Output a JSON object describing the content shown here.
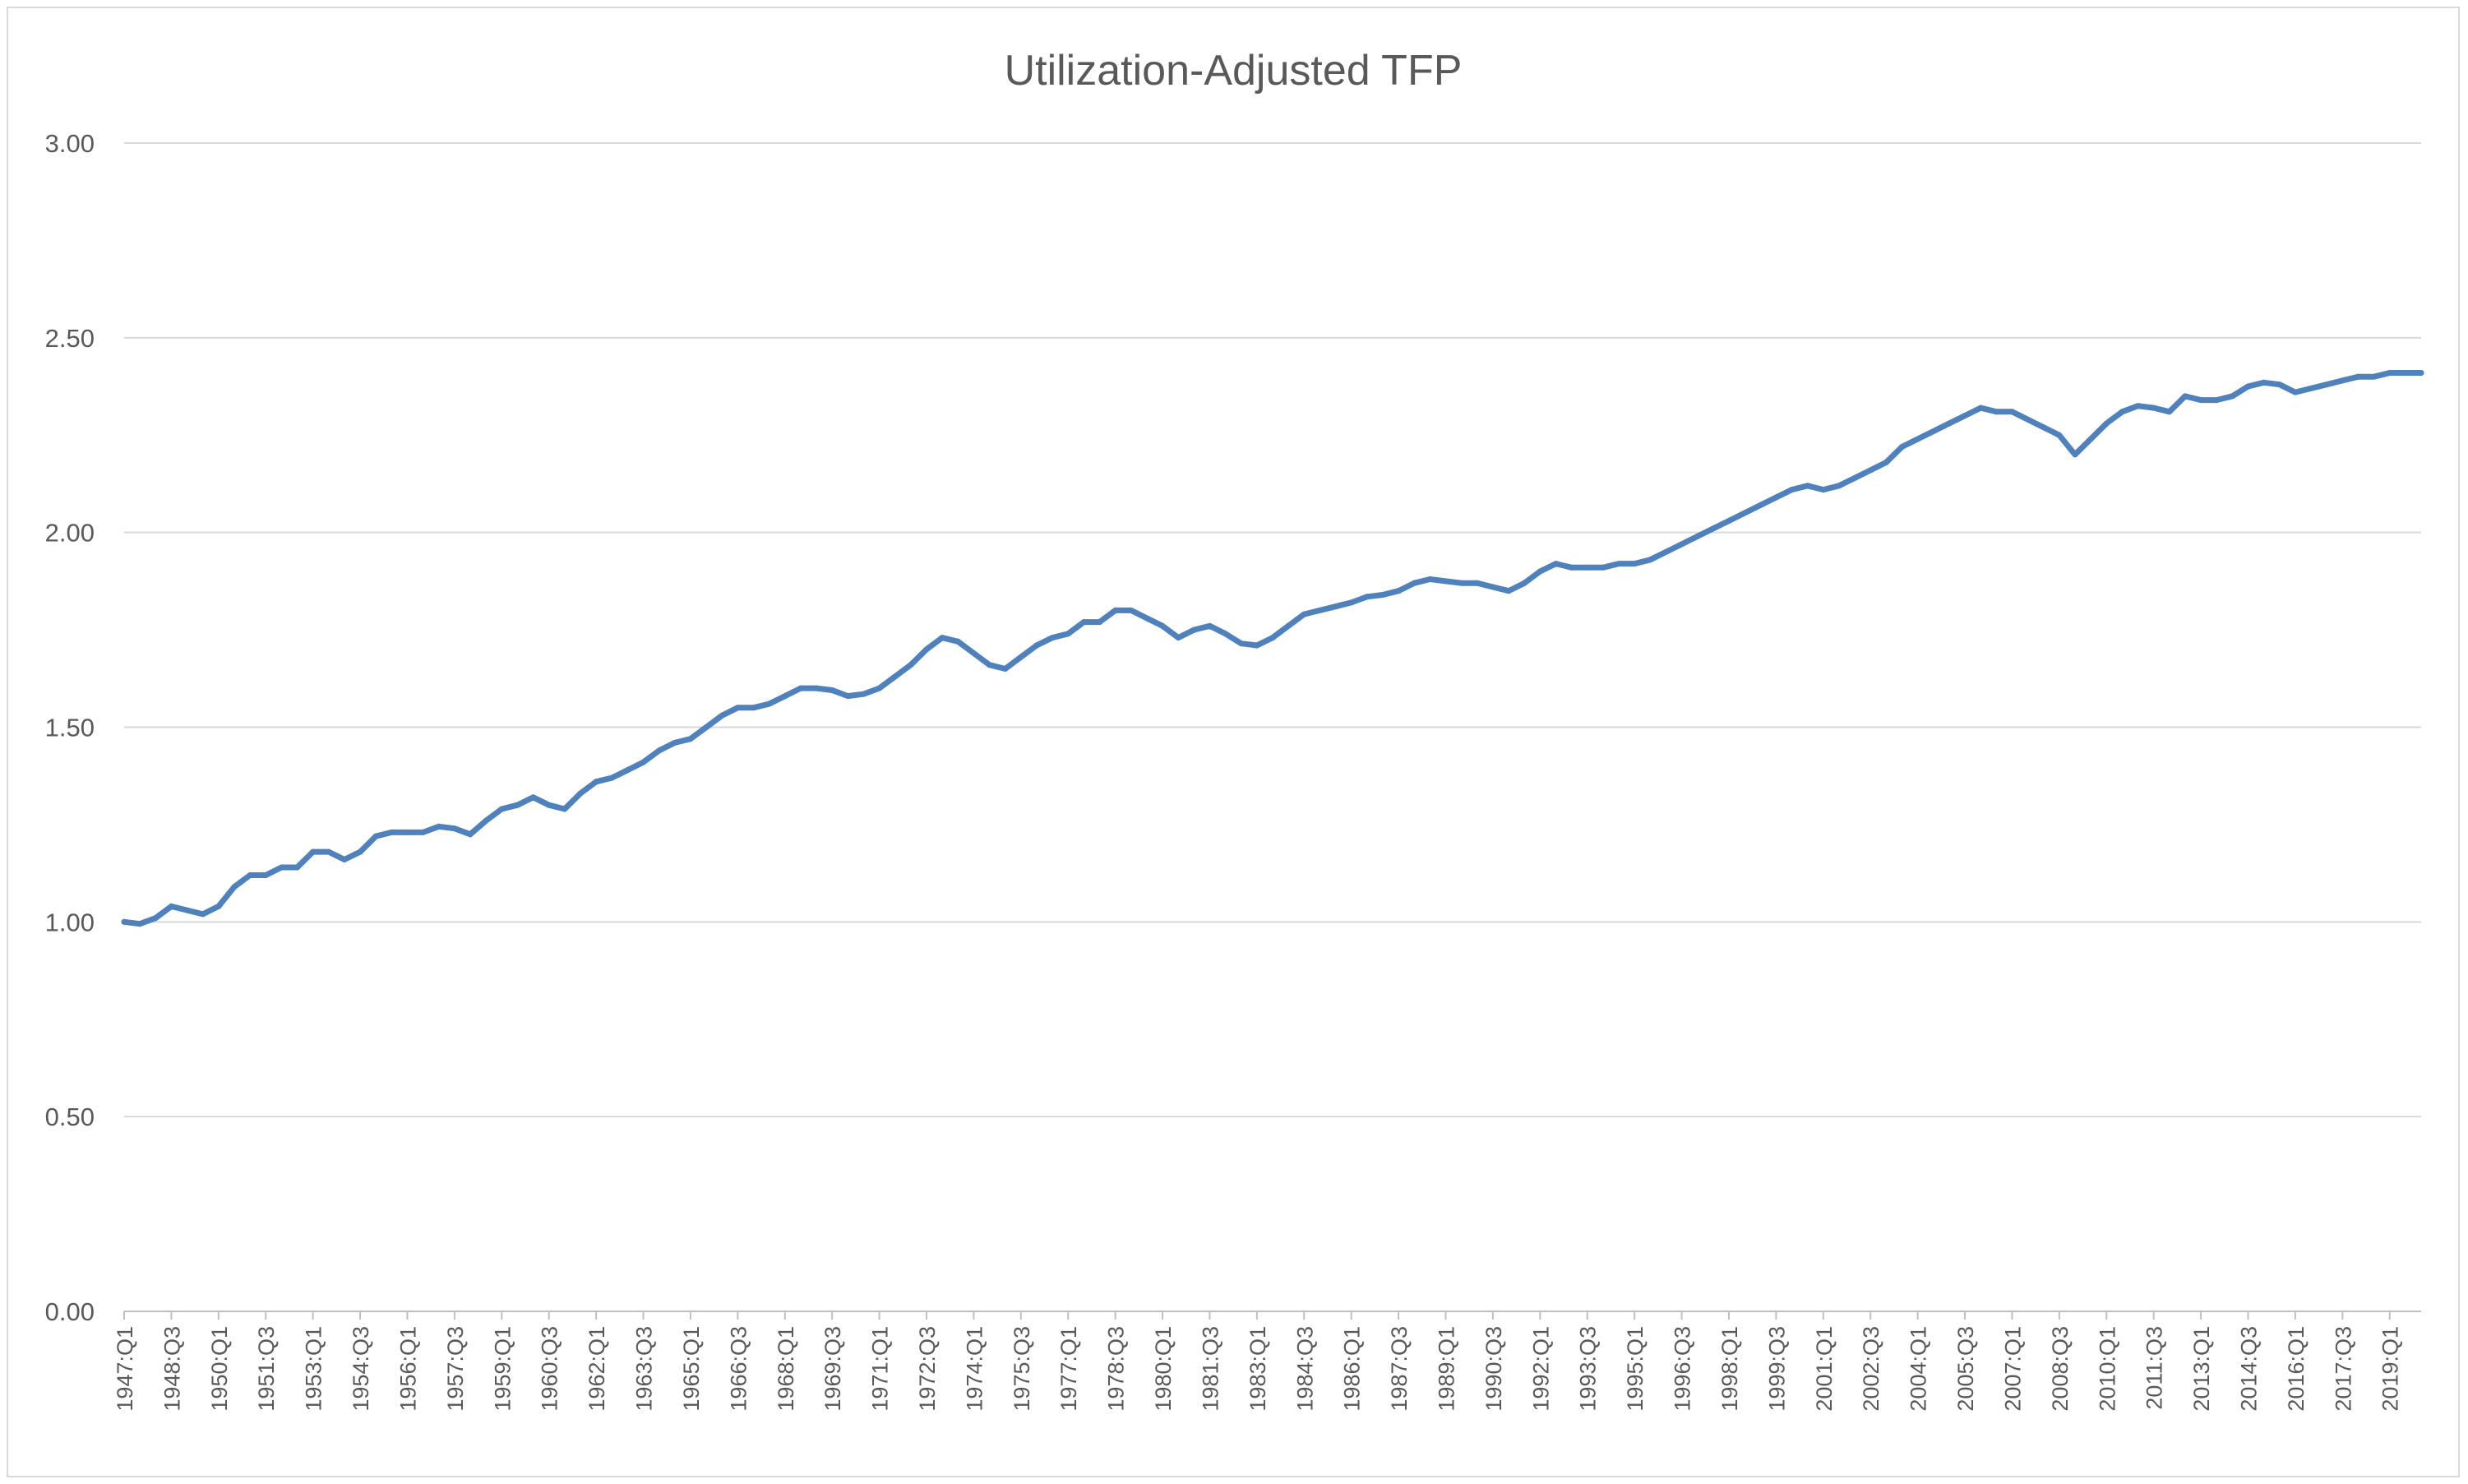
{
  "chart_data": {
    "type": "line",
    "title": "Utilization-Adjusted TFP",
    "xlabel": "",
    "ylabel": "",
    "ylim": [
      0,
      3
    ],
    "y_ticks": [
      "0.00",
      "0.50",
      "1.00",
      "1.50",
      "2.00",
      "2.50",
      "3.00"
    ],
    "grid": true,
    "legend": "none",
    "x_tick_labels": [
      "1947:Q1",
      "1948:Q3",
      "1950:Q1",
      "1951:Q3",
      "1953:Q1",
      "1954:Q3",
      "1956:Q1",
      "1957:Q3",
      "1959:Q1",
      "1960:Q3",
      "1962:Q1",
      "1963:Q3",
      "1965:Q1",
      "1966:Q3",
      "1968:Q1",
      "1969:Q3",
      "1971:Q1",
      "1972:Q3",
      "1974:Q1",
      "1975:Q3",
      "1977:Q1",
      "1978:Q3",
      "1980:Q1",
      "1981:Q3",
      "1983:Q1",
      "1984:Q3",
      "1986:Q1",
      "1987:Q3",
      "1989:Q1",
      "1990:Q3",
      "1992:Q1",
      "1993:Q3",
      "1995:Q1",
      "1996:Q3",
      "1998:Q1",
      "1999:Q3",
      "2001:Q1",
      "2002:Q3",
      "2004:Q1",
      "2005:Q3",
      "2007:Q1",
      "2008:Q3",
      "2010:Q1",
      "2011:Q3",
      "2013:Q1",
      "2014:Q3",
      "2016:Q1",
      "2017:Q3",
      "2019:Q1"
    ],
    "first_quarter": "1947:Q1",
    "last_quarter": "2020:Q1",
    "series": [
      {
        "color": "#4f81bd",
        "points": [
          [
            "1947:Q1",
            1.0
          ],
          [
            "1947:Q3",
            0.995
          ],
          [
            "1948:Q1",
            1.01
          ],
          [
            "1948:Q3",
            1.04
          ],
          [
            "1949:Q1",
            1.03
          ],
          [
            "1949:Q3",
            1.02
          ],
          [
            "1950:Q1",
            1.04
          ],
          [
            "1950:Q3",
            1.09
          ],
          [
            "1951:Q1",
            1.12
          ],
          [
            "1951:Q3",
            1.12
          ],
          [
            "1952:Q1",
            1.14
          ],
          [
            "1952:Q3",
            1.14
          ],
          [
            "1953:Q1",
            1.18
          ],
          [
            "1953:Q3",
            1.18
          ],
          [
            "1954:Q1",
            1.16
          ],
          [
            "1954:Q3",
            1.18
          ],
          [
            "1955:Q1",
            1.22
          ],
          [
            "1955:Q3",
            1.23
          ],
          [
            "1956:Q1",
            1.23
          ],
          [
            "1956:Q3",
            1.23
          ],
          [
            "1957:Q1",
            1.245
          ],
          [
            "1957:Q3",
            1.24
          ],
          [
            "1958:Q1",
            1.225
          ],
          [
            "1958:Q3",
            1.26
          ],
          [
            "1959:Q1",
            1.29
          ],
          [
            "1959:Q3",
            1.3
          ],
          [
            "1960:Q1",
            1.32
          ],
          [
            "1960:Q3",
            1.3
          ],
          [
            "1961:Q1",
            1.29
          ],
          [
            "1961:Q3",
            1.33
          ],
          [
            "1962:Q1",
            1.36
          ],
          [
            "1962:Q3",
            1.37
          ],
          [
            "1963:Q1",
            1.39
          ],
          [
            "1963:Q3",
            1.41
          ],
          [
            "1964:Q1",
            1.44
          ],
          [
            "1964:Q3",
            1.46
          ],
          [
            "1965:Q1",
            1.47
          ],
          [
            "1965:Q3",
            1.5
          ],
          [
            "1966:Q1",
            1.53
          ],
          [
            "1966:Q3",
            1.55
          ],
          [
            "1967:Q1",
            1.55
          ],
          [
            "1967:Q3",
            1.56
          ],
          [
            "1968:Q1",
            1.58
          ],
          [
            "1968:Q3",
            1.6
          ],
          [
            "1969:Q1",
            1.6
          ],
          [
            "1969:Q3",
            1.595
          ],
          [
            "1970:Q1",
            1.58
          ],
          [
            "1970:Q3",
            1.585
          ],
          [
            "1971:Q1",
            1.6
          ],
          [
            "1971:Q3",
            1.63
          ],
          [
            "1972:Q1",
            1.66
          ],
          [
            "1972:Q3",
            1.7
          ],
          [
            "1973:Q1",
            1.73
          ],
          [
            "1973:Q3",
            1.72
          ],
          [
            "1974:Q1",
            1.69
          ],
          [
            "1974:Q3",
            1.66
          ],
          [
            "1975:Q1",
            1.65
          ],
          [
            "1975:Q3",
            1.68
          ],
          [
            "1976:Q1",
            1.71
          ],
          [
            "1976:Q3",
            1.73
          ],
          [
            "1977:Q1",
            1.74
          ],
          [
            "1977:Q3",
            1.77
          ],
          [
            "1978:Q1",
            1.77
          ],
          [
            "1978:Q3",
            1.8
          ],
          [
            "1979:Q1",
            1.8
          ],
          [
            "1979:Q3",
            1.78
          ],
          [
            "1980:Q1",
            1.76
          ],
          [
            "1980:Q3",
            1.73
          ],
          [
            "1981:Q1",
            1.75
          ],
          [
            "1981:Q3",
            1.76
          ],
          [
            "1982:Q1",
            1.74
          ],
          [
            "1982:Q3",
            1.715
          ],
          [
            "1983:Q1",
            1.71
          ],
          [
            "1983:Q3",
            1.73
          ],
          [
            "1984:Q1",
            1.76
          ],
          [
            "1984:Q3",
            1.79
          ],
          [
            "1985:Q1",
            1.8
          ],
          [
            "1985:Q3",
            1.81
          ],
          [
            "1986:Q1",
            1.82
          ],
          [
            "1986:Q3",
            1.835
          ],
          [
            "1987:Q1",
            1.84
          ],
          [
            "1987:Q3",
            1.85
          ],
          [
            "1988:Q1",
            1.87
          ],
          [
            "1988:Q3",
            1.88
          ],
          [
            "1989:Q1",
            1.875
          ],
          [
            "1989:Q3",
            1.87
          ],
          [
            "1990:Q1",
            1.87
          ],
          [
            "1990:Q3",
            1.86
          ],
          [
            "1991:Q1",
            1.85
          ],
          [
            "1991:Q3",
            1.87
          ],
          [
            "1992:Q1",
            1.9
          ],
          [
            "1992:Q3",
            1.92
          ],
          [
            "1993:Q1",
            1.91
          ],
          [
            "1993:Q3",
            1.91
          ],
          [
            "1994:Q1",
            1.91
          ],
          [
            "1994:Q3",
            1.92
          ],
          [
            "1995:Q1",
            1.92
          ],
          [
            "1995:Q3",
            1.93
          ],
          [
            "1996:Q1",
            1.95
          ],
          [
            "1996:Q3",
            1.97
          ],
          [
            "1997:Q1",
            1.99
          ],
          [
            "1997:Q3",
            2.01
          ],
          [
            "1998:Q1",
            2.03
          ],
          [
            "1998:Q3",
            2.05
          ],
          [
            "1999:Q1",
            2.07
          ],
          [
            "1999:Q3",
            2.09
          ],
          [
            "2000:Q1",
            2.11
          ],
          [
            "2000:Q3",
            2.12
          ],
          [
            "2001:Q1",
            2.11
          ],
          [
            "2001:Q3",
            2.12
          ],
          [
            "2002:Q1",
            2.14
          ],
          [
            "2002:Q3",
            2.16
          ],
          [
            "2003:Q1",
            2.18
          ],
          [
            "2003:Q3",
            2.22
          ],
          [
            "2004:Q1",
            2.24
          ],
          [
            "2004:Q3",
            2.26
          ],
          [
            "2005:Q1",
            2.28
          ],
          [
            "2005:Q3",
            2.3
          ],
          [
            "2006:Q1",
            2.32
          ],
          [
            "2006:Q3",
            2.31
          ],
          [
            "2007:Q1",
            2.31
          ],
          [
            "2007:Q3",
            2.29
          ],
          [
            "2008:Q1",
            2.27
          ],
          [
            "2008:Q3",
            2.25
          ],
          [
            "2009:Q1",
            2.2
          ],
          [
            "2009:Q3",
            2.24
          ],
          [
            "2010:Q1",
            2.28
          ],
          [
            "2010:Q3",
            2.31
          ],
          [
            "2011:Q1",
            2.325
          ],
          [
            "2011:Q3",
            2.32
          ],
          [
            "2012:Q1",
            2.31
          ],
          [
            "2012:Q3",
            2.35
          ],
          [
            "2013:Q1",
            2.34
          ],
          [
            "2013:Q3",
            2.34
          ],
          [
            "2014:Q1",
            2.35
          ],
          [
            "2014:Q3",
            2.375
          ],
          [
            "2015:Q1",
            2.385
          ],
          [
            "2015:Q3",
            2.38
          ],
          [
            "2016:Q1",
            2.36
          ],
          [
            "2016:Q3",
            2.37
          ],
          [
            "2017:Q1",
            2.38
          ],
          [
            "2017:Q3",
            2.39
          ],
          [
            "2018:Q1",
            2.4
          ],
          [
            "2018:Q3",
            2.4
          ],
          [
            "2019:Q1",
            2.41
          ],
          [
            "2019:Q3",
            2.41
          ],
          [
            "2020:Q1",
            2.41
          ]
        ]
      }
    ]
  }
}
